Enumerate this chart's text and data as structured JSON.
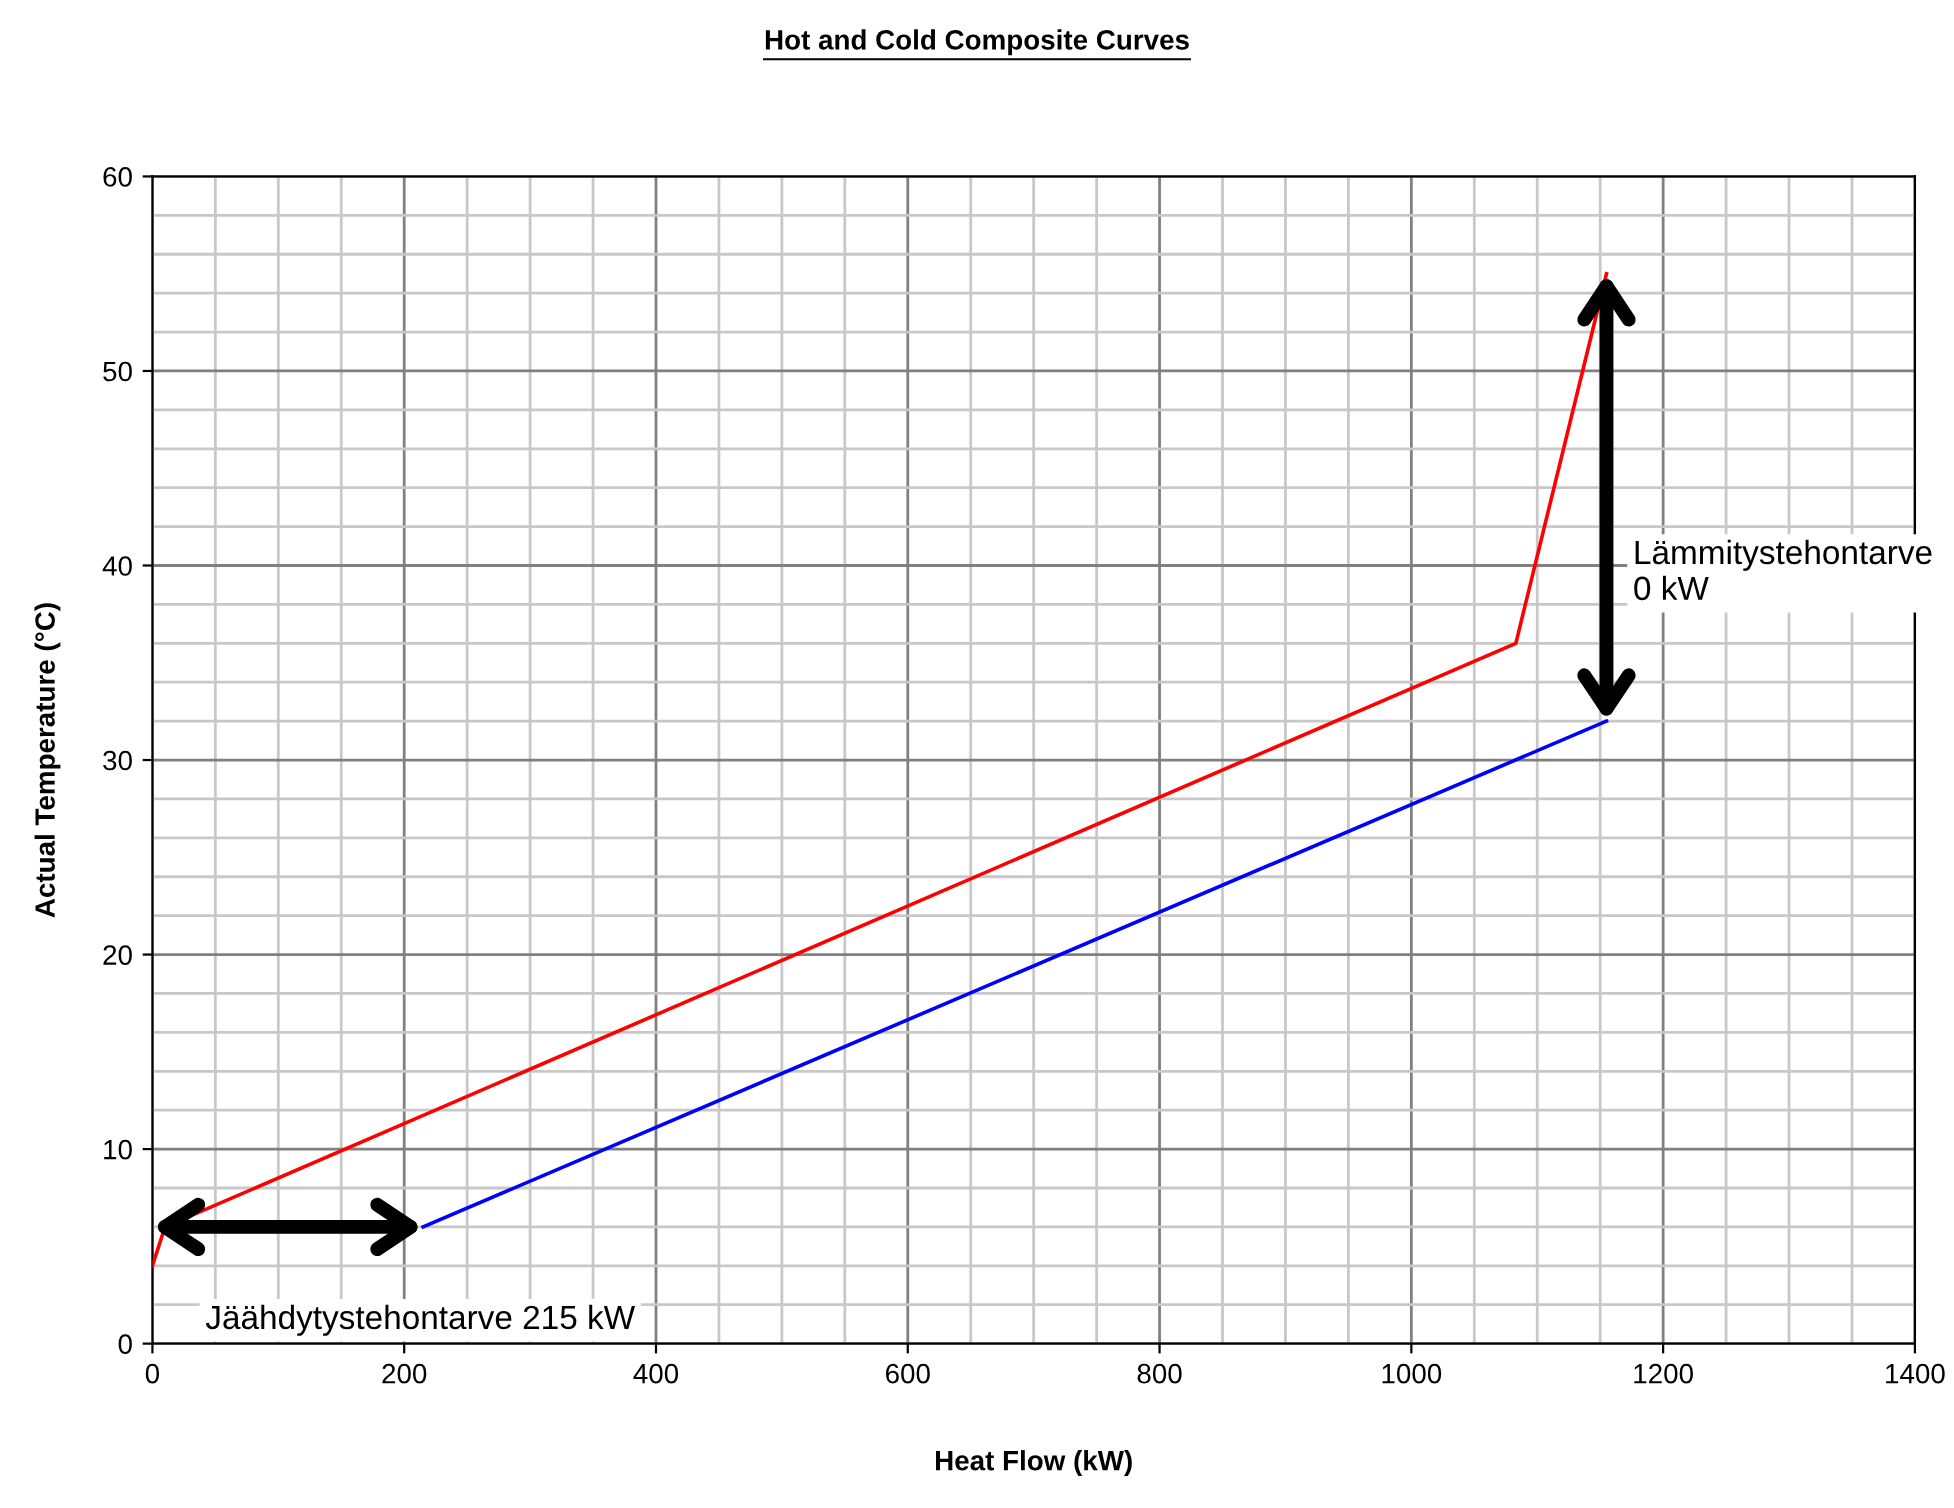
{
  "chart_data": {
    "type": "line",
    "title": "Hot and Cold Composite Curves",
    "xlabel": "Heat Flow (kW)",
    "ylabel": "Actual Temperature (°C)",
    "series": [
      {
        "color": "#ff0000",
        "x": [
          0,
          10,
          1083,
          1155
        ],
        "values": [
          4,
          6,
          36,
          55
        ]
      },
      {
        "color": "#0000ff",
        "x": [
          215,
          1155
        ],
        "values": [
          6,
          32
        ]
      }
    ],
    "annotations": [
      "Jäähdytystehontarve 215 kW",
      "Lämmitystehontarve\n0 kW"
    ],
    "xlim": [
      0,
      1400
    ],
    "xticks": [
      0,
      200,
      400,
      600,
      800,
      1000,
      1200,
      1400
    ],
    "ylim": [
      0,
      60
    ],
    "yticks": [
      0,
      10,
      20,
      30,
      40,
      50,
      60
    ],
    "grid": true,
    "marker": "none",
    "line_style": "solid",
    "legend": false
  }
}
